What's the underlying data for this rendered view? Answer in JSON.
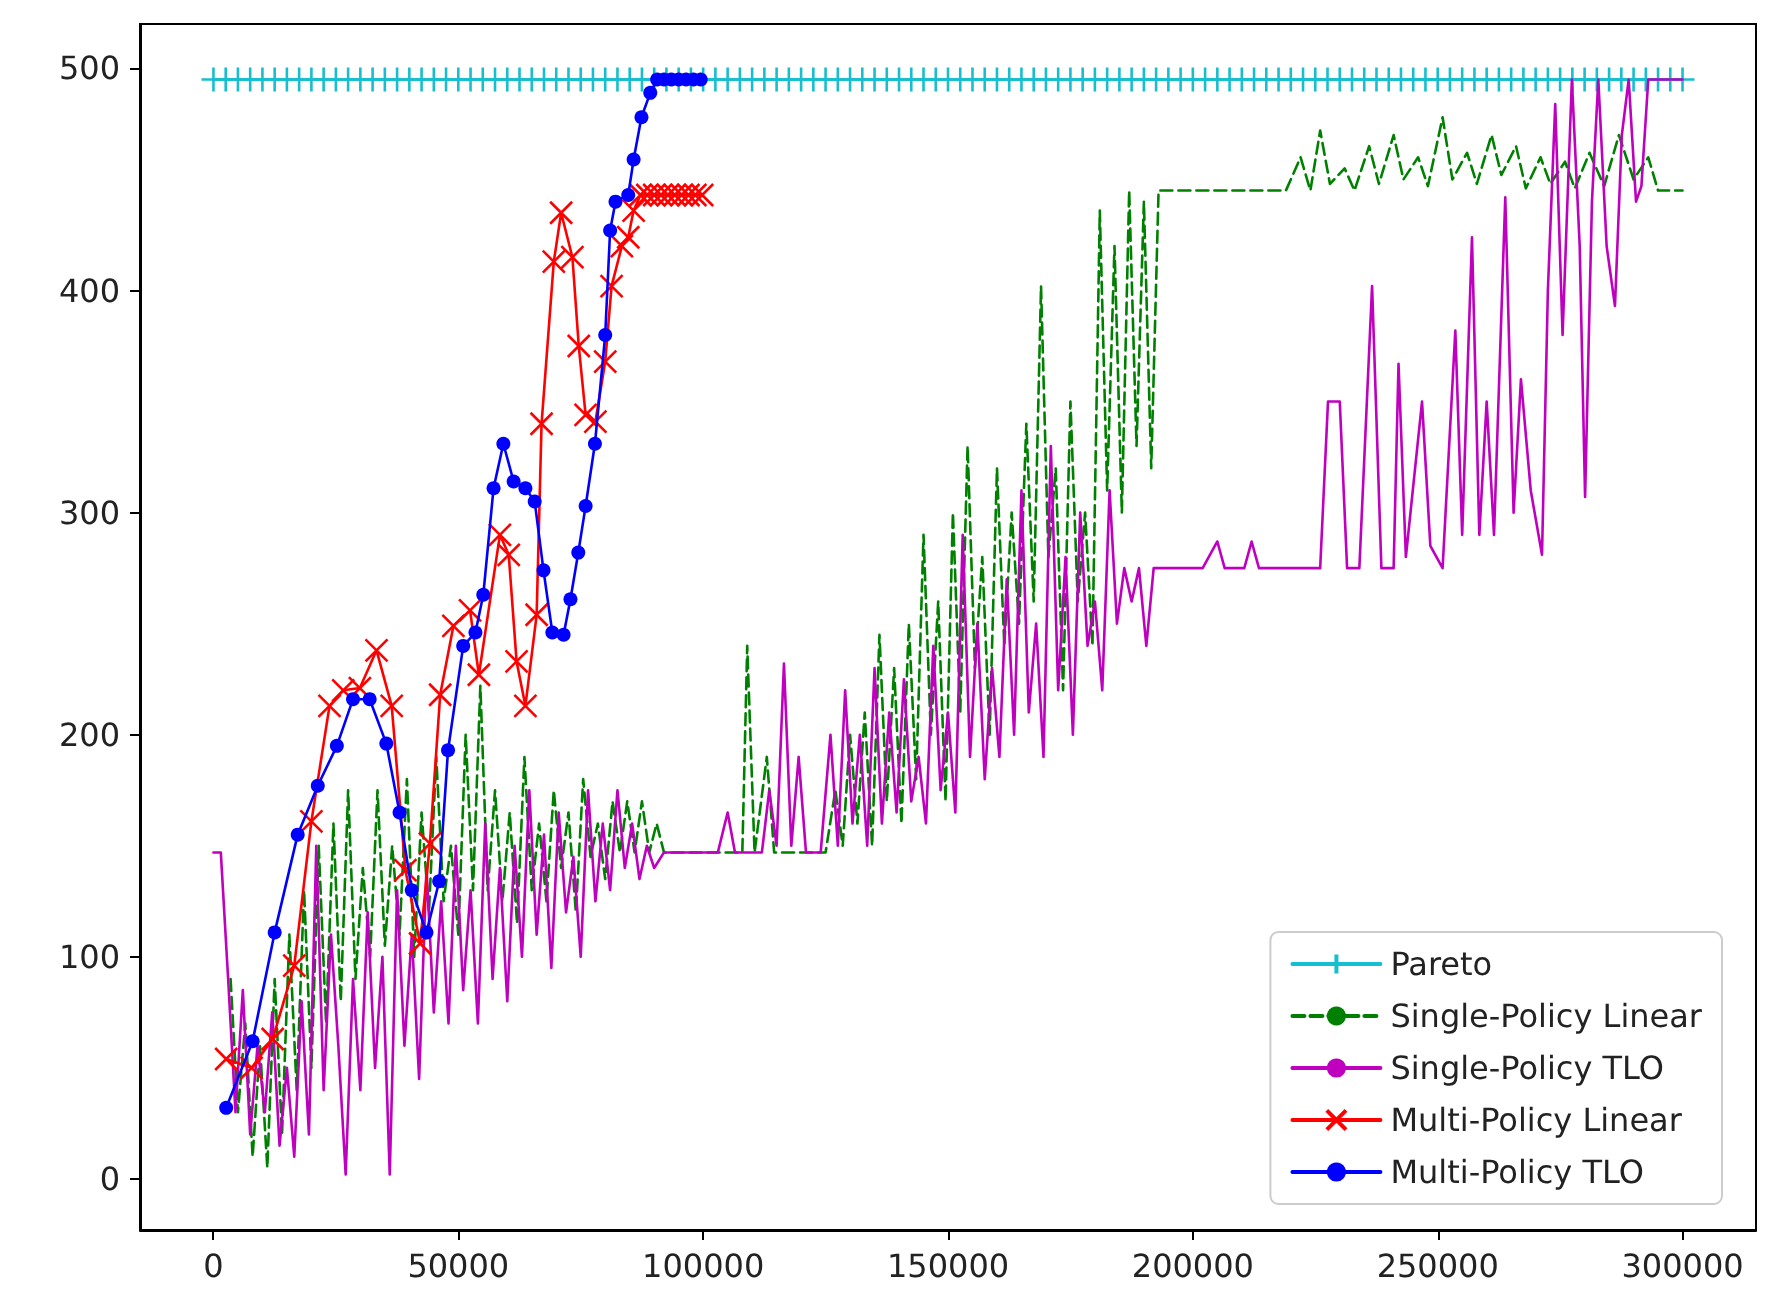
{
  "chart_data": {
    "type": "line",
    "xlim": [
      -15000,
      315000
    ],
    "xticks": [
      0,
      50000,
      100000,
      150000,
      200000,
      250000,
      300000
    ],
    "ylim": [
      -23,
      520
    ],
    "yticks": [
      0,
      100,
      200,
      300,
      400,
      500
    ],
    "grid": false,
    "legend": "bottom right",
    "series": [
      {
        "name": "Pareto",
        "color": "#17becf",
        "marker": "cross",
        "line_style": "solid",
        "x": [
          0,
          2500,
          5000,
          7500,
          10000,
          12500,
          15000,
          17500,
          20000,
          22500,
          25000,
          27500,
          30000,
          32500,
          35000,
          37500,
          40000,
          42500,
          45000,
          47500,
          50000,
          52500,
          55000,
          57500,
          60000,
          62500,
          65000,
          67500,
          70000,
          72500,
          75000,
          77500,
          80000,
          82500,
          85000,
          87500,
          90000,
          92500,
          95000,
          97500,
          100000,
          102500,
          105000,
          107500,
          110000,
          112500,
          115000,
          117500,
          120000,
          122500,
          125000,
          127500,
          130000,
          132500,
          135000,
          137500,
          140000,
          142500,
          145000,
          147500,
          150000,
          152500,
          155000,
          157500,
          160000,
          162500,
          165000,
          167500,
          170000,
          172500,
          175000,
          177500,
          180000,
          182500,
          185000,
          187500,
          190000,
          192500,
          195000,
          197500,
          200000,
          202500,
          205000,
          207500,
          210000,
          212500,
          215000,
          217500,
          220000,
          222500,
          225000,
          227500,
          230000,
          232500,
          235000,
          237500,
          240000,
          242500,
          245000,
          247500,
          250000,
          252500,
          255000,
          257500,
          260000,
          262500,
          265000,
          267500,
          270000,
          272500,
          275000,
          277500,
          280000,
          282500,
          285000,
          287500,
          290000,
          292500,
          295000,
          297500,
          300000
        ],
        "values": [
          495,
          495,
          495,
          495,
          495,
          495,
          495,
          495,
          495,
          495,
          495,
          495,
          495,
          495,
          495,
          495,
          495,
          495,
          495,
          495,
          495,
          495,
          495,
          495,
          495,
          495,
          495,
          495,
          495,
          495,
          495,
          495,
          495,
          495,
          495,
          495,
          495,
          495,
          495,
          495,
          495,
          495,
          495,
          495,
          495,
          495,
          495,
          495,
          495,
          495,
          495,
          495,
          495,
          495,
          495,
          495,
          495,
          495,
          495,
          495,
          495,
          495,
          495,
          495,
          495,
          495,
          495,
          495,
          495,
          495,
          495,
          495,
          495,
          495,
          495,
          495,
          495,
          495,
          495,
          495,
          495,
          495,
          495,
          495,
          495,
          495,
          495,
          495,
          495,
          495,
          495,
          495,
          495,
          495,
          495,
          495,
          495,
          495,
          495,
          495,
          495,
          495,
          495,
          495,
          495,
          495,
          495,
          495,
          495,
          495,
          495,
          495,
          495,
          495,
          495,
          495,
          495,
          495,
          495,
          495,
          495
        ]
      },
      {
        "name": "Single-Policy Linear",
        "color": "#008000",
        "marker": "none",
        "line_style": "dashed",
        "x": [
          3500,
          5000,
          6500,
          8000,
          9500,
          11000,
          12500,
          14000,
          15500,
          17000,
          18500,
          20000,
          21500,
          23000,
          24500,
          26000,
          27500,
          29000,
          30500,
          32000,
          33500,
          35000,
          36500,
          38000,
          39500,
          41000,
          42500,
          44000,
          45500,
          47000,
          48500,
          50000,
          51500,
          53000,
          54500,
          56000,
          57500,
          59000,
          60500,
          62000,
          63500,
          65000,
          66500,
          68000,
          69500,
          71000,
          72500,
          74000,
          75500,
          77000,
          78500,
          80000,
          81500,
          83000,
          84500,
          86000,
          87500,
          89000,
          90500,
          92000,
          100000,
          108000,
          109000,
          110500,
          113000,
          114500,
          125000,
          127000,
          128500,
          130000,
          131500,
          133000,
          134500,
          136000,
          137500,
          139000,
          140500,
          142000,
          143500,
          145000,
          146500,
          148000,
          149500,
          151000,
          152500,
          154000,
          155500,
          157000,
          158500,
          160000,
          161500,
          163000,
          164500,
          166000,
          167500,
          169000,
          170500,
          172000,
          173500,
          175000,
          176500,
          178000,
          179500,
          181000,
          182500,
          184000,
          185500,
          187000,
          188500,
          190000,
          191500,
          193000,
          200000,
          210000,
          219000,
          222000,
          224000,
          226000,
          228000,
          231000,
          233000,
          236000,
          238000,
          241000,
          243000,
          246000,
          248000,
          251000,
          253000,
          256000,
          258000,
          261000,
          263000,
          266000,
          268000,
          271000,
          273000,
          276000,
          278000,
          281000,
          284000,
          287000,
          290000,
          293000,
          295000,
          300000
        ],
        "values": [
          90,
          30,
          70,
          10,
          60,
          5,
          90,
          20,
          110,
          40,
          130,
          50,
          150,
          70,
          160,
          80,
          175,
          90,
          140,
          100,
          175,
          105,
          150,
          110,
          180,
          100,
          165,
          120,
          190,
          125,
          150,
          110,
          200,
          130,
          222,
          130,
          175,
          125,
          165,
          115,
          190,
          130,
          160,
          125,
          175,
          140,
          165,
          120,
          180,
          145,
          160,
          135,
          170,
          147,
          170,
          147,
          170,
          147,
          160,
          147,
          147,
          147,
          240,
          147,
          190,
          147,
          147,
          175,
          150,
          200,
          160,
          210,
          150,
          245,
          170,
          230,
          160,
          250,
          180,
          290,
          200,
          260,
          170,
          300,
          210,
          330,
          230,
          280,
          200,
          320,
          240,
          300,
          250,
          340,
          260,
          402,
          280,
          320,
          220,
          350,
          260,
          300,
          240,
          436,
          310,
          420,
          300,
          445,
          330,
          440,
          320,
          445,
          445,
          445,
          445,
          460,
          445,
          472,
          448,
          455,
          445,
          465,
          448,
          470,
          450,
          460,
          447,
          478,
          450,
          462,
          448,
          470,
          452,
          465,
          446,
          460,
          448,
          458,
          446,
          462,
          447,
          470,
          450,
          460,
          445,
          445
        ]
      },
      {
        "name": "Single-Policy TLO",
        "color": "#bf00bf",
        "marker": "none",
        "line_style": "solid",
        "x": [
          0,
          1500,
          3000,
          4500,
          6000,
          7500,
          9000,
          10500,
          12000,
          13500,
          15000,
          16500,
          18000,
          19500,
          21000,
          22500,
          24000,
          25500,
          27000,
          28500,
          30000,
          31500,
          33000,
          34500,
          36000,
          37500,
          39000,
          40500,
          42000,
          43500,
          45000,
          46500,
          48000,
          49500,
          51000,
          52500,
          54000,
          55500,
          57000,
          58500,
          60000,
          61500,
          63000,
          64500,
          66000,
          67500,
          69000,
          70500,
          72000,
          73500,
          75000,
          76500,
          78000,
          79500,
          81000,
          82500,
          84000,
          85500,
          87000,
          88500,
          90000,
          92000,
          103000,
          105000,
          106500,
          112000,
          113500,
          115000,
          116500,
          118000,
          119500,
          121000,
          124000,
          126000,
          127500,
          129000,
          130500,
          132000,
          133500,
          135000,
          136500,
          138000,
          139500,
          141000,
          142500,
          144000,
          145500,
          147000,
          148500,
          150000,
          151500,
          153000,
          154500,
          156000,
          157500,
          159000,
          160500,
          162000,
          163500,
          165000,
          166500,
          168000,
          169500,
          171000,
          172500,
          174000,
          175500,
          177000,
          178500,
          180000,
          181500,
          183000,
          184500,
          186000,
          187500,
          189000,
          190500,
          192000,
          202000,
          205000,
          206500,
          210500,
          212000,
          213500,
          226000,
          227600,
          230000,
          231500,
          234000,
          236600,
          238500,
          241000,
          242000,
          243500,
          246800,
          248500,
          251000,
          253600,
          255000,
          257000,
          258500,
          260000,
          261500,
          263800,
          265500,
          267000,
          269000,
          271300,
          272500,
          274000,
          275500,
          277400,
          279000,
          280100,
          281500,
          282800,
          284500,
          286200,
          287600,
          289000,
          290500,
          291600,
          293000,
          296000,
          300000
        ],
        "values": [
          147,
          147,
          90,
          30,
          85,
          20,
          60,
          30,
          75,
          15,
          50,
          10,
          80,
          20,
          150,
          40,
          110,
          60,
          2,
          90,
          40,
          120,
          50,
          100,
          2,
          130,
          60,
          110,
          45,
          140,
          75,
          125,
          70,
          150,
          85,
          130,
          70,
          160,
          90,
          140,
          80,
          150,
          100,
          175,
          110,
          155,
          95,
          165,
          120,
          145,
          100,
          175,
          125,
          160,
          130,
          175,
          140,
          160,
          135,
          150,
          140,
          147,
          147,
          165,
          147,
          147,
          175,
          150,
          232,
          150,
          190,
          147,
          147,
          200,
          150,
          220,
          160,
          200,
          150,
          230,
          160,
          210,
          165,
          225,
          170,
          190,
          160,
          240,
          175,
          210,
          165,
          290,
          190,
          250,
          180,
          230,
          190,
          270,
          200,
          310,
          210,
          250,
          190,
          330,
          220,
          280,
          200,
          300,
          240,
          260,
          220,
          310,
          250,
          275,
          260,
          275,
          240,
          275,
          275,
          287,
          275,
          275,
          287,
          275,
          275,
          350,
          350,
          275,
          275,
          402,
          275,
          275,
          367,
          280,
          350,
          285,
          275,
          382,
          290,
          424,
          290,
          350,
          290,
          442,
          300,
          360,
          310,
          281,
          400,
          484,
          380,
          495,
          420,
          307,
          440,
          495,
          420,
          393,
          470,
          495,
          440,
          447,
          495,
          495,
          495
        ]
      },
      {
        "name": "Multi-Policy Linear",
        "color": "#ff0000",
        "marker": "x",
        "line_style": "solid",
        "x": [
          2600,
          7800,
          12100,
          16500,
          20000,
          23700,
          26500,
          29900,
          33300,
          36400,
          39200,
          42200,
          44200,
          46300,
          49000,
          52400,
          54200,
          58500,
          60300,
          61900,
          63700,
          66000,
          67000,
          69500,
          71000,
          73300,
          74600,
          76000,
          78000,
          80000,
          81300,
          83400,
          84700,
          85800,
          87200,
          88600,
          90000,
          91400,
          92800,
          94200,
          95600,
          97000,
          98400,
          99800
        ],
        "values": [
          54,
          50,
          63,
          96,
          161,
          213,
          220,
          221,
          238,
          213,
          139,
          106,
          151,
          218,
          249,
          256,
          227,
          290,
          281,
          233,
          213,
          254,
          340,
          413,
          435,
          415,
          375,
          344,
          341,
          368,
          402,
          420,
          424,
          436,
          443,
          443,
          443,
          443,
          443,
          443,
          443,
          443,
          443,
          443
        ]
      },
      {
        "name": "Multi-Policy TLO",
        "color": "#0000ff",
        "marker": "circle",
        "line_style": "solid",
        "x": [
          2600,
          8000,
          12500,
          17200,
          21300,
          25200,
          28500,
          31900,
          35300,
          38000,
          40500,
          43500,
          46100,
          47900,
          51000,
          53500,
          55100,
          57200,
          59200,
          61300,
          63700,
          65600,
          67400,
          69200,
          71500,
          72900,
          74500,
          76000,
          77900,
          80000,
          81000,
          82100,
          84700,
          85800,
          87400,
          89200,
          90600,
          92000,
          93500,
          95000,
          96500,
          98000,
          99500
        ],
        "values": [
          32,
          62,
          111,
          155,
          177,
          195,
          216,
          216,
          196,
          165,
          130,
          111,
          134,
          193,
          240,
          246,
          263,
          311,
          331,
          314,
          311,
          305,
          274,
          246,
          245,
          261,
          282,
          303,
          331,
          380,
          427,
          440,
          443,
          459,
          478,
          489,
          495,
          495,
          495,
          495,
          495,
          495,
          495
        ]
      }
    ]
  }
}
